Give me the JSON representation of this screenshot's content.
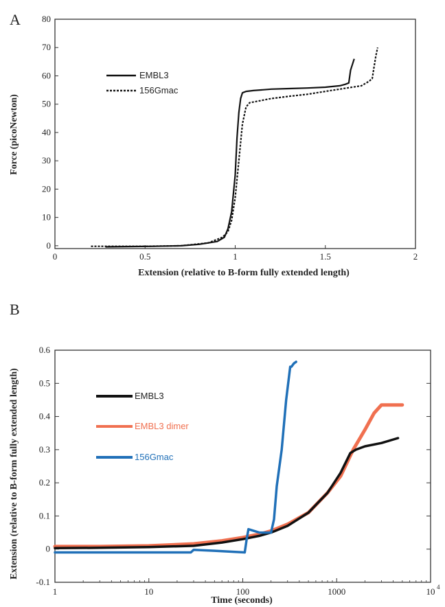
{
  "chart_data": [
    {
      "panel_label": "A",
      "type": "line",
      "xlabel": "Extension (relative to B-form fully extended length)",
      "ylabel": "Force (picoNewton)",
      "xlim": [
        0,
        2
      ],
      "ylim": [
        -1,
        80
      ],
      "xticks": [
        "0",
        "0.5",
        "1",
        "1.5",
        "2"
      ],
      "yticks": [
        "0",
        "10",
        "20",
        "30",
        "40",
        "50",
        "60",
        "70",
        "80"
      ],
      "legend_position": "upper-left",
      "series": [
        {
          "name": "EMBL3",
          "style": "solid",
          "color": "#111111",
          "x": [
            0.28,
            0.4,
            0.55,
            0.7,
            0.8,
            0.9,
            0.94,
            0.96,
            0.98,
            1.0,
            1.01,
            1.02,
            1.03,
            1.04,
            1.06,
            1.1,
            1.2,
            1.3,
            1.4,
            1.5,
            1.58,
            1.61,
            1.63,
            1.64,
            1.66
          ],
          "y": [
            -0.4,
            -0.3,
            -0.2,
            0.0,
            0.5,
            1.5,
            3.0,
            6.0,
            12.0,
            25.0,
            38.0,
            47.0,
            52.0,
            54.0,
            54.5,
            54.8,
            55.3,
            55.5,
            55.7,
            56.0,
            56.5,
            57.0,
            57.5,
            62.0,
            66.0
          ]
        },
        {
          "name": "156Gmac",
          "style": "dashed",
          "color": "#111111",
          "x": [
            0.2,
            0.35,
            0.5,
            0.7,
            0.85,
            0.93,
            0.96,
            0.98,
            1.0,
            1.02,
            1.04,
            1.06,
            1.08,
            1.12,
            1.2,
            1.3,
            1.4,
            1.5,
            1.6,
            1.7,
            1.74,
            1.76,
            1.77,
            1.78,
            1.79
          ],
          "y": [
            -0.2,
            -0.2,
            -0.2,
            0.0,
            1.0,
            3.0,
            5.0,
            9.0,
            17.0,
            30.0,
            43.0,
            49.0,
            50.5,
            51.0,
            52.0,
            52.8,
            53.5,
            54.5,
            55.5,
            56.5,
            58.0,
            59.0,
            63.0,
            67.0,
            70.0
          ]
        }
      ]
    },
    {
      "panel_label": "B",
      "type": "line",
      "xlabel": "Time (seconds)",
      "ylabel": "Extension (relative to B-form fully extended length)",
      "xscale": "log",
      "xlim": [
        1,
        10000
      ],
      "ylim": [
        -0.1,
        0.6
      ],
      "xticks": [
        "1",
        "10",
        "100",
        "1000",
        "10"
      ],
      "xtick_last_superscript": "4",
      "yticks": [
        "-0.1",
        "0",
        "0.1",
        "0.2",
        "0.3",
        "0.4",
        "0.5",
        "0.6"
      ],
      "legend_position": "upper-left",
      "series": [
        {
          "name": "EMBL3",
          "color": "#111111",
          "x": [
            1,
            3,
            10,
            30,
            60,
            100,
            150,
            200,
            300,
            500,
            800,
            1100,
            1400,
            1600,
            2000,
            3000,
            4500
          ],
          "y": [
            0.003,
            0.004,
            0.006,
            0.01,
            0.02,
            0.03,
            0.04,
            0.05,
            0.07,
            0.11,
            0.17,
            0.23,
            0.29,
            0.3,
            0.31,
            0.32,
            0.335
          ]
        },
        {
          "name": "EMBL3 dimer",
          "color": "#f07050",
          "x": [
            1,
            3,
            10,
            30,
            60,
            100,
            150,
            200,
            300,
            500,
            800,
            1100,
            1500,
            2000,
            2500,
            3000,
            4000,
            5000
          ],
          "y": [
            0.008,
            0.008,
            0.01,
            0.016,
            0.025,
            0.035,
            0.045,
            0.055,
            0.075,
            0.11,
            0.17,
            0.22,
            0.3,
            0.36,
            0.41,
            0.435,
            0.435,
            0.435
          ]
        },
        {
          "name": "156Gmac",
          "color": "#2070b8",
          "x": [
            1,
            10,
            28,
            30,
            50,
            80,
            105,
            110,
            115,
            150,
            200,
            215,
            230,
            260,
            290,
            320,
            330,
            350,
            370
          ],
          "y": [
            -0.01,
            -0.01,
            -0.01,
            -0.002,
            -0.005,
            -0.008,
            -0.01,
            0.03,
            0.06,
            0.05,
            0.05,
            0.09,
            0.19,
            0.3,
            0.45,
            0.55,
            0.55,
            0.56,
            0.565
          ]
        }
      ]
    }
  ]
}
